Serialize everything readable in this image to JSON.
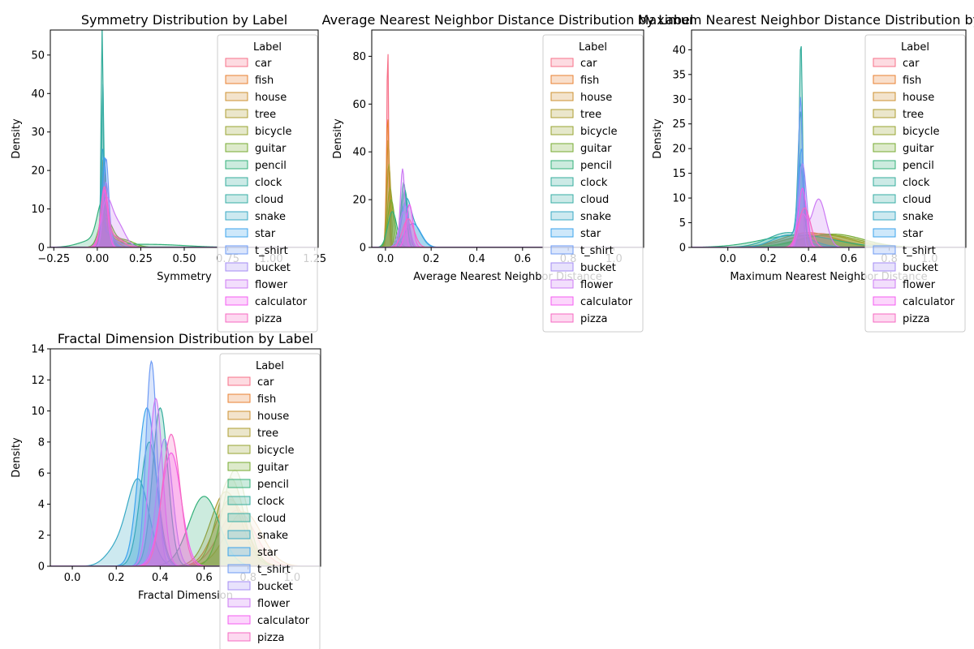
{
  "legend_title": "Label",
  "labels": [
    "car",
    "fish",
    "house",
    "tree",
    "bicycle",
    "guitar",
    "pencil",
    "clock",
    "cloud",
    "snake",
    "star",
    "t_shirt",
    "bucket",
    "flower",
    "calculator",
    "pizza"
  ],
  "colors": [
    "#f77189",
    "#e98132",
    "#ce9032",
    "#ae9d31",
    "#97a431",
    "#77ab31",
    "#33b07a",
    "#35ad9c",
    "#36ada4",
    "#38a9c5",
    "#3ba3ec",
    "#6e9bf4",
    "#a48cf4",
    "#cc7af4",
    "#f45cf2",
    "#f668c2"
  ],
  "legend_placement": "upper-right",
  "chart_data": [
    {
      "type": "area",
      "title": "Symmetry Distribution by Label",
      "xlabel": "Symmetry",
      "ylabel": "Density",
      "xlim": [
        -0.27,
        1.27
      ],
      "ylim": [
        0,
        56.5
      ],
      "xticks": [
        -0.25,
        0,
        0.25,
        0.5,
        0.75,
        1.0,
        1.25
      ],
      "xtick_labels": [
        "−0.25",
        "0.00",
        "0.25",
        "0.50",
        "0.75",
        "1.00",
        "1.25"
      ],
      "yticks": [
        0,
        10,
        20,
        30,
        40,
        50
      ],
      "series": [
        {
          "name": "car",
          "peaks": [
            [
              0.04,
              20,
              0.012
            ]
          ]
        },
        {
          "name": "fish",
          "peaks": [
            [
              0.035,
              17,
              0.014
            ],
            [
              0.06,
              4,
              0.03
            ]
          ]
        },
        {
          "name": "house",
          "peaks": [
            [
              0.035,
              21,
              0.013
            ],
            [
              0.07,
              3,
              0.04
            ]
          ]
        },
        {
          "name": "tree",
          "peaks": [
            [
              0.045,
              12,
              0.02
            ],
            [
              0.1,
              2,
              0.05
            ]
          ]
        },
        {
          "name": "bicycle",
          "peaks": [
            [
              0.04,
              8,
              0.03
            ],
            [
              0.12,
              2,
              0.06
            ]
          ]
        },
        {
          "name": "guitar",
          "peaks": [
            [
              0.05,
              7,
              0.035
            ],
            [
              0.15,
              2,
              0.06
            ]
          ]
        },
        {
          "name": "pencil",
          "peaks": [
            [
              0.03,
              10,
              0.03
            ],
            [
              0.0,
              2,
              0.09
            ],
            [
              0.3,
              0.8,
              0.2
            ]
          ]
        },
        {
          "name": "clock",
          "peaks": [
            [
              0.028,
              54.5,
              0.006
            ],
            [
              0.05,
              4,
              0.03
            ]
          ]
        },
        {
          "name": "cloud",
          "peaks": [
            [
              0.032,
              39.5,
              0.006
            ],
            [
              0.05,
              4,
              0.03
            ]
          ]
        },
        {
          "name": "snake",
          "peaks": [
            [
              0.03,
              24,
              0.009
            ],
            [
              0.06,
              4,
              0.03
            ]
          ]
        },
        {
          "name": "star",
          "peaks": [
            [
              0.04,
              22,
              0.012
            ],
            [
              0.07,
              3,
              0.03
            ]
          ]
        },
        {
          "name": "t_shirt",
          "peaks": [
            [
              0.05,
              22,
              0.015
            ],
            [
              0.09,
              2,
              0.04
            ]
          ]
        },
        {
          "name": "bucket",
          "peaks": [
            [
              0.05,
              17,
              0.018
            ]
          ]
        },
        {
          "name": "flower",
          "peaks": [
            [
              0.05,
              10,
              0.03
            ],
            [
              0.11,
              6.5,
              0.045
            ]
          ]
        },
        {
          "name": "calculator",
          "peaks": [
            [
              0.04,
              15,
              0.02
            ]
          ]
        },
        {
          "name": "pizza",
          "peaks": [
            [
              0.04,
              14,
              0.02
            ],
            [
              0.09,
              3,
              0.05
            ]
          ]
        }
      ]
    },
    {
      "type": "area",
      "title": "Average Nearest Neighbor Distance Distribution by Label",
      "xlabel": "Average Nearest Neighbor Distance",
      "ylabel": "Density",
      "xlim": [
        -0.06,
        1.13
      ],
      "ylim": [
        0,
        91
      ],
      "xticks": [
        0,
        0.2,
        0.4,
        0.6,
        0.8,
        1.0
      ],
      "xtick_labels": [
        "0.0",
        "0.2",
        "0.4",
        "0.6",
        "0.8",
        "1.0"
      ],
      "yticks": [
        0,
        20,
        40,
        60,
        80
      ],
      "series": [
        {
          "name": "car",
          "peaks": [
            [
              0.01,
              86,
              0.004
            ]
          ]
        },
        {
          "name": "fish",
          "peaks": [
            [
              0.01,
              55,
              0.006
            ]
          ]
        },
        {
          "name": "house",
          "peaks": [
            [
              0.012,
              45,
              0.007
            ]
          ]
        },
        {
          "name": "tree",
          "peaks": [
            [
              0.015,
              35,
              0.009
            ]
          ]
        },
        {
          "name": "bicycle",
          "peaks": [
            [
              0.02,
              25,
              0.012
            ]
          ]
        },
        {
          "name": "guitar",
          "peaks": [
            [
              0.025,
              20,
              0.015
            ]
          ]
        },
        {
          "name": "pencil",
          "peaks": [
            [
              0.03,
              15,
              0.02
            ]
          ]
        },
        {
          "name": "clock",
          "peaks": [
            [
              0.08,
              27,
              0.012
            ]
          ]
        },
        {
          "name": "cloud",
          "peaks": [
            [
              0.085,
              24,
              0.014
            ]
          ]
        },
        {
          "name": "snake",
          "peaks": [
            [
              0.09,
              17,
              0.02
            ],
            [
              0.13,
              8,
              0.03
            ]
          ]
        },
        {
          "name": "star",
          "peaks": [
            [
              0.12,
              10,
              0.035
            ]
          ]
        },
        {
          "name": "t_shirt",
          "peaks": [
            [
              0.085,
              18,
              0.018
            ]
          ]
        },
        {
          "name": "bucket",
          "peaks": [
            [
              0.08,
              15,
              0.02
            ]
          ]
        },
        {
          "name": "flower",
          "peaks": [
            [
              0.075,
              33,
              0.01
            ]
          ]
        },
        {
          "name": "calculator",
          "peaks": [
            [
              0.105,
              18,
              0.015
            ]
          ]
        },
        {
          "name": "pizza",
          "peaks": [
            [
              0.1,
              12,
              0.025
            ]
          ]
        }
      ]
    },
    {
      "type": "area",
      "title": "Maximum Nearest Neighbor Distance Distribution by Label",
      "xlabel": "Maximum Nearest Neighbor Distance",
      "ylabel": "Density",
      "xlim": [
        -0.18,
        1.18
      ],
      "ylim": [
        0,
        44
      ],
      "xticks": [
        0,
        0.2,
        0.4,
        0.6,
        0.8,
        1.0
      ],
      "xtick_labels": [
        "0.0",
        "0.2",
        "0.4",
        "0.6",
        "0.8",
        "1.0"
      ],
      "yticks": [
        0,
        5,
        10,
        15,
        20,
        25,
        30,
        35,
        40
      ],
      "series": [
        {
          "name": "car",
          "peaks": [
            [
              0.42,
              2.5,
              0.14
            ]
          ]
        },
        {
          "name": "fish",
          "peaks": [
            [
              0.4,
              3,
              0.13
            ]
          ]
        },
        {
          "name": "house",
          "peaks": [
            [
              0.45,
              2.8,
              0.15
            ]
          ]
        },
        {
          "name": "tree",
          "peaks": [
            [
              0.48,
              2.5,
              0.14
            ]
          ]
        },
        {
          "name": "bicycle",
          "peaks": [
            [
              0.5,
              2.5,
              0.15
            ]
          ]
        },
        {
          "name": "guitar",
          "peaks": [
            [
              0.52,
              2.7,
              0.15
            ]
          ]
        },
        {
          "name": "pencil",
          "peaks": [
            [
              0.35,
              2.5,
              0.18
            ]
          ]
        },
        {
          "name": "clock",
          "peaks": [
            [
              0.362,
              42,
              0.008
            ]
          ]
        },
        {
          "name": "cloud",
          "peaks": [
            [
              0.36,
              25,
              0.012
            ],
            [
              0.3,
              3,
              0.1
            ]
          ]
        },
        {
          "name": "snake",
          "peaks": [
            [
              0.36,
              15,
              0.015
            ],
            [
              0.3,
              2.5,
              0.08
            ]
          ]
        },
        {
          "name": "star",
          "peaks": [
            [
              0.365,
              20,
              0.015
            ]
          ]
        },
        {
          "name": "t_shirt",
          "peaks": [
            [
              0.36,
              30.5,
              0.01
            ]
          ]
        },
        {
          "name": "bucket",
          "peaks": [
            [
              0.37,
              17,
              0.02
            ]
          ]
        },
        {
          "name": "flower",
          "peaks": [
            [
              0.45,
              9.8,
              0.035
            ],
            [
              0.37,
              6,
              0.02
            ]
          ]
        },
        {
          "name": "calculator",
          "peaks": [
            [
              0.37,
              12,
              0.02
            ]
          ]
        },
        {
          "name": "pizza",
          "peaks": [
            [
              0.38,
              8,
              0.03
            ]
          ]
        }
      ]
    },
    {
      "type": "area",
      "title": "Fractal Dimension Distribution by Label",
      "xlabel": "Fractal Dimension",
      "ylabel": "Density",
      "xlim": [
        -0.1,
        1.13
      ],
      "ylim": [
        0,
        14
      ],
      "xticks": [
        0,
        0.2,
        0.4,
        0.6,
        0.8,
        1.0
      ],
      "xtick_labels": [
        "0.0",
        "0.2",
        "0.4",
        "0.6",
        "0.8",
        "1.0"
      ],
      "yticks": [
        0,
        2,
        4,
        6,
        8,
        10,
        12,
        14
      ],
      "series": [
        {
          "name": "car",
          "peaks": [
            [
              0.75,
              3.6,
              0.08
            ]
          ]
        },
        {
          "name": "fish",
          "peaks": [
            [
              0.72,
              4.3,
              0.07
            ]
          ]
        },
        {
          "name": "house",
          "peaks": [
            [
              0.78,
              3.5,
              0.08
            ]
          ]
        },
        {
          "name": "tree",
          "peaks": [
            [
              0.7,
              4.8,
              0.07
            ]
          ]
        },
        {
          "name": "bicycle",
          "peaks": [
            [
              0.72,
              5.7,
              0.06
            ]
          ]
        },
        {
          "name": "guitar",
          "peaks": [
            [
              0.74,
              6.2,
              0.055
            ]
          ]
        },
        {
          "name": "pencil",
          "peaks": [
            [
              0.6,
              4.5,
              0.07
            ]
          ]
        },
        {
          "name": "clock",
          "peaks": [
            [
              0.4,
              10.2,
              0.035
            ]
          ]
        },
        {
          "name": "cloud",
          "peaks": [
            [
              0.35,
              8,
              0.04
            ]
          ]
        },
        {
          "name": "snake",
          "peaks": [
            [
              0.3,
              5.5,
              0.05
            ],
            [
              0.2,
              1,
              0.05
            ]
          ]
        },
        {
          "name": "star",
          "peaks": [
            [
              0.34,
              10.2,
              0.04
            ]
          ]
        },
        {
          "name": "t_shirt",
          "peaks": [
            [
              0.36,
              13.2,
              0.025
            ]
          ]
        },
        {
          "name": "bucket",
          "peaks": [
            [
              0.42,
              8.2,
              0.035
            ]
          ]
        },
        {
          "name": "flower",
          "peaks": [
            [
              0.38,
              10.8,
              0.03
            ]
          ]
        },
        {
          "name": "calculator",
          "peaks": [
            [
              0.45,
              7.3,
              0.045
            ]
          ]
        },
        {
          "name": "pizza",
          "peaks": [
            [
              0.45,
              8.5,
              0.04
            ]
          ]
        }
      ]
    }
  ]
}
